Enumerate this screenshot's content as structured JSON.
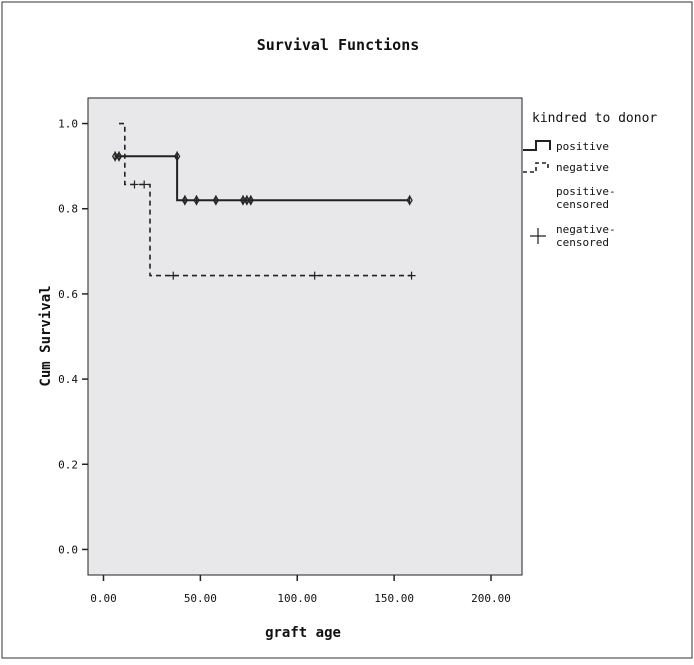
{
  "chart_data": {
    "type": "line",
    "step": true,
    "title": "Survival Functions",
    "xlabel": "graft age",
    "ylabel": "Cum Survival",
    "xlim": [
      -8,
      216
    ],
    "ylim": [
      -0.06,
      1.06
    ],
    "xticks": [
      0,
      50,
      100,
      150,
      200
    ],
    "xtick_labels": [
      "0.00",
      "50.00",
      "100.00",
      "150.00",
      "200.00"
    ],
    "yticks": [
      0.0,
      0.2,
      0.4,
      0.6,
      0.8,
      1.0
    ],
    "ytick_labels": [
      "0.0",
      "0.2",
      "0.4",
      "0.6",
      "0.8",
      "1.0"
    ],
    "grid": false,
    "background": "#e8e8ea",
    "legend": {
      "title": "kindred to donor",
      "position": "right",
      "entries": [
        {
          "label": "positive",
          "symbol": "step-solid"
        },
        {
          "label": "negative",
          "symbol": "step-dashed"
        },
        {
          "label": "positive-\ncensored",
          "symbol": "diamond-tick"
        },
        {
          "label": "negative-\ncensored",
          "symbol": "plus"
        }
      ]
    },
    "series": [
      {
        "name": "positive",
        "style": "solid",
        "color": "#222222",
        "steps_x": [
          6,
          38,
          38,
          158
        ],
        "steps_y": [
          0.923,
          0.923,
          0.82,
          0.82
        ],
        "censored_x": [
          6,
          8,
          38,
          42,
          48,
          58,
          72,
          74,
          76,
          158
        ],
        "censored_y": [
          0.923,
          0.923,
          0.923,
          0.82,
          0.82,
          0.82,
          0.82,
          0.82,
          0.82,
          0.82
        ]
      },
      {
        "name": "negative",
        "style": "dashed",
        "color": "#222222",
        "steps_x": [
          8,
          11,
          11,
          24,
          24,
          159
        ],
        "steps_y": [
          1.0,
          1.0,
          0.857,
          0.857,
          0.643,
          0.643
        ],
        "censored_x": [
          16,
          21,
          36,
          109,
          159
        ],
        "censored_y": [
          0.857,
          0.857,
          0.643,
          0.643,
          0.643
        ]
      }
    ]
  }
}
